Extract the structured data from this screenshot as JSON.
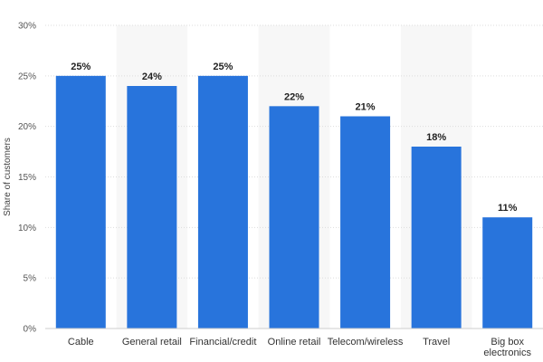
{
  "chart_data": {
    "type": "bar",
    "title": "",
    "xlabel": "",
    "ylabel": "Share of customers",
    "categories": [
      "Cable",
      "General retail",
      "Financial/credit",
      "Online retail",
      "Telecom/wireless",
      "Travel",
      "Big box electronics"
    ],
    "category_lines": [
      [
        "Cable"
      ],
      [
        "General retail"
      ],
      [
        "Financial/credit"
      ],
      [
        "Online retail"
      ],
      [
        "Telecom/wireless"
      ],
      [
        "Travel"
      ],
      [
        "Big box",
        "electronics"
      ]
    ],
    "values": [
      25,
      24,
      25,
      22,
      21,
      18,
      11
    ],
    "data_labels": [
      "25%",
      "24%",
      "25%",
      "22%",
      "21%",
      "18%",
      "11%"
    ],
    "ylim": [
      0,
      30
    ],
    "yticks": [
      0,
      5,
      10,
      15,
      20,
      25,
      30
    ],
    "ytick_labels": [
      "0%",
      "5%",
      "10%",
      "15%",
      "20%",
      "25%",
      "30%"
    ],
    "grid": true,
    "alternating_column_shading": true,
    "bar_color": "#2874dc",
    "shade_color": "#f7f7f7",
    "grid_color": "#dddddd"
  }
}
